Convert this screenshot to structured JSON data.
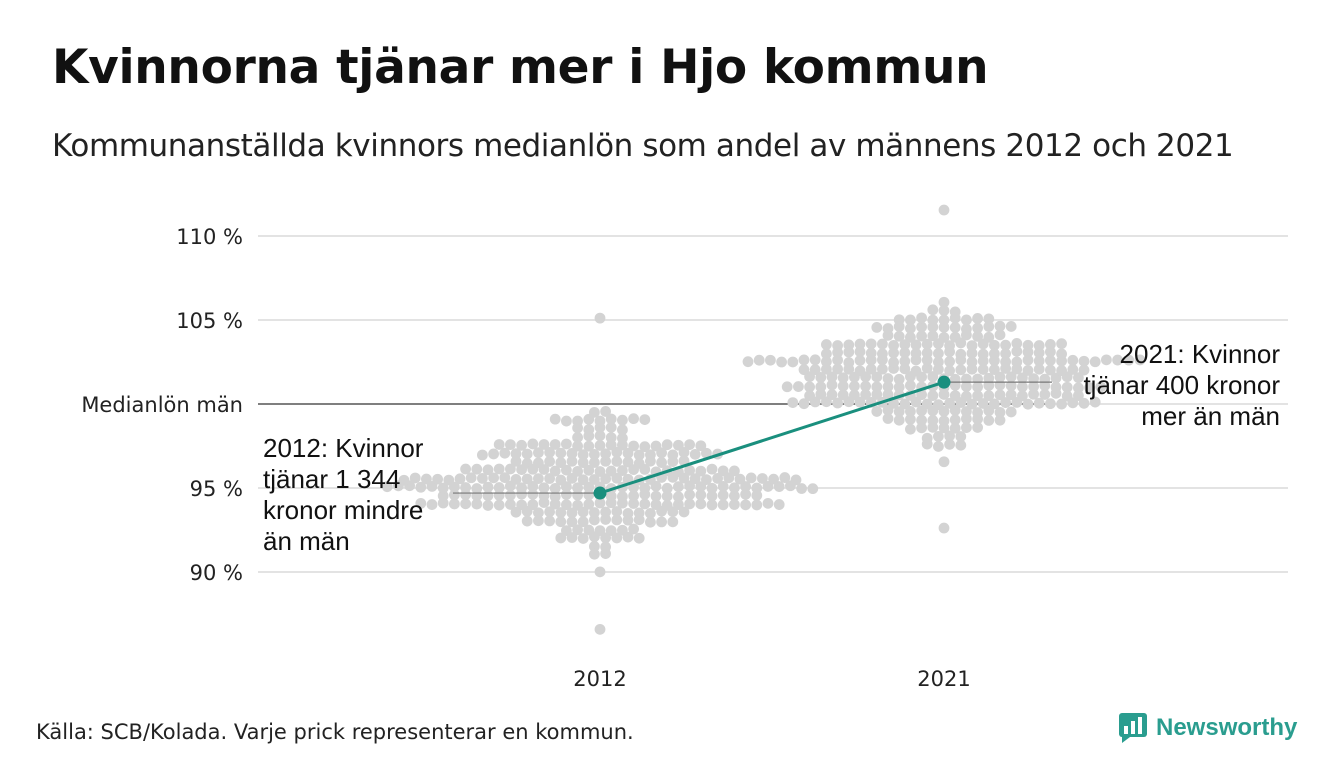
{
  "title": "Kvinnorna tjänar mer i Hjo kommun",
  "subtitle": "Kommunanställda kvinnors medianlön som andel av männens 2012 och 2021",
  "source": "Källa: SCB/Kolada. Varje prick representerar en kommun.",
  "brand": {
    "name": "Newsworthy",
    "icon": "newsworthy-chart-icon",
    "color": "#2a9d8f"
  },
  "chart_data": {
    "type": "scatter",
    "subtype": "beeswarm with highlighted line",
    "categories": [
      "2012",
      "2021"
    ],
    "ylim": [
      86.5,
      111.5
    ],
    "y_ticks": [
      {
        "value": 90,
        "label": "90 %"
      },
      {
        "value": 95,
        "label": "95 %"
      },
      {
        "value": 100,
        "label": "Medianlön män"
      },
      {
        "value": 105,
        "label": "105 %"
      },
      {
        "value": 110,
        "label": "110 %"
      }
    ],
    "reference_line": {
      "value": 100,
      "label": "Medianlön män"
    },
    "grid": true,
    "highlight": {
      "values": [
        94.7,
        101.3
      ],
      "color": "#1a8f7e",
      "annotations": [
        {
          "category": "2012",
          "lines": [
            "2012: Kvinnor",
            "tjänar 1 344",
            "kronor mindre",
            "än män"
          ]
        },
        {
          "category": "2021",
          "lines": [
            "2021: Kvinnor",
            "tjänar 400 kronor",
            "mer än män"
          ]
        }
      ]
    },
    "swarm": {
      "color": "#d3d3d3",
      "count_per_category": 290,
      "2012": {
        "median": 95.3,
        "min": 86.5,
        "max": 105.2
      },
      "2021": {
        "median": 101.5,
        "min": 92.6,
        "max": 111.4
      }
    }
  }
}
